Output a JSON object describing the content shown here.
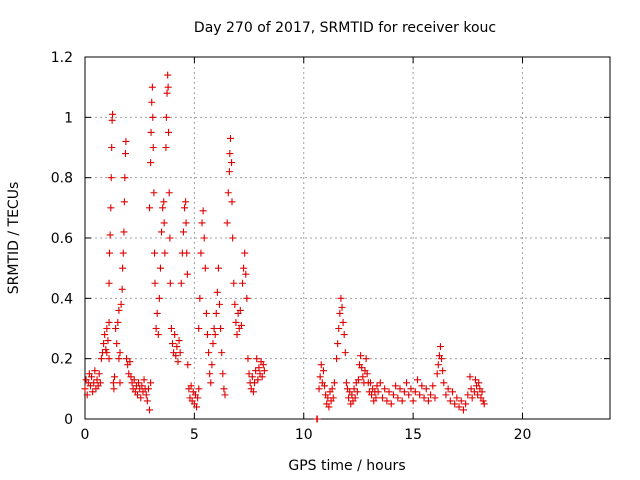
{
  "chart_data": {
    "type": "scatter",
    "title": "Day 270 of 2017, SRMTID for receiver kouc",
    "xlabel": "GPS time / hours",
    "ylabel": "SRMTID / TECUs",
    "xlim": [
      0,
      24
    ],
    "ylim": [
      0,
      1.2
    ],
    "xticks": [
      0,
      5,
      10,
      15,
      20
    ],
    "yticks": [
      0,
      0.2,
      0.4,
      0.6,
      0.8,
      1,
      1.2
    ],
    "xtick_labels": [
      "0",
      "5",
      "10",
      "15",
      "20"
    ],
    "ytick_labels": [
      "0",
      "0.2",
      "0.4",
      "0.6",
      "0.8",
      "1",
      "1.2"
    ],
    "grid": true,
    "marker": "+",
    "color": "#e00000",
    "series": [
      {
        "name": "SRMTID",
        "points": [
          [
            0.0,
            0.1
          ],
          [
            0.05,
            0.13
          ],
          [
            0.1,
            0.08
          ],
          [
            0.15,
            0.12
          ],
          [
            0.2,
            0.15
          ],
          [
            0.25,
            0.11
          ],
          [
            0.3,
            0.14
          ],
          [
            0.35,
            0.09
          ],
          [
            0.4,
            0.12
          ],
          [
            0.45,
            0.16
          ],
          [
            0.5,
            0.1
          ],
          [
            0.55,
            0.13
          ],
          [
            0.6,
            0.11
          ],
          [
            0.65,
            0.15
          ],
          [
            0.7,
            0.12
          ],
          [
            0.75,
            0.2
          ],
          [
            0.8,
            0.22
          ],
          [
            0.85,
            0.25
          ],
          [
            0.9,
            0.28
          ],
          [
            0.95,
            0.23
          ],
          [
            1.0,
            0.3
          ],
          [
            1.05,
            0.26
          ],
          [
            1.1,
            0.32
          ],
          [
            1.0,
            0.22
          ],
          [
            1.1,
            0.2
          ],
          [
            1.1,
            0.45
          ],
          [
            1.12,
            0.55
          ],
          [
            1.15,
            0.61
          ],
          [
            1.18,
            0.7
          ],
          [
            1.2,
            0.8
          ],
          [
            1.22,
            0.9
          ],
          [
            1.24,
            0.99
          ],
          [
            1.26,
            1.01
          ],
          [
            1.3,
            0.12
          ],
          [
            1.32,
            0.1
          ],
          [
            1.35,
            0.14
          ],
          [
            1.4,
            0.3
          ],
          [
            1.45,
            0.25
          ],
          [
            1.5,
            0.32
          ],
          [
            1.55,
            0.36
          ],
          [
            1.55,
            0.2
          ],
          [
            1.6,
            0.22
          ],
          [
            1.6,
            0.12
          ],
          [
            1.65,
            0.38
          ],
          [
            1.7,
            0.43
          ],
          [
            1.72,
            0.5
          ],
          [
            1.75,
            0.55
          ],
          [
            1.78,
            0.62
          ],
          [
            1.8,
            0.72
          ],
          [
            1.82,
            0.8
          ],
          [
            1.85,
            0.88
          ],
          [
            1.87,
            0.92
          ],
          [
            1.9,
            0.2
          ],
          [
            1.95,
            0.18
          ],
          [
            2.0,
            0.15
          ],
          [
            2.05,
            0.19
          ],
          [
            2.1,
            0.14
          ],
          [
            2.15,
            0.12
          ],
          [
            2.2,
            0.1
          ],
          [
            2.25,
            0.13
          ],
          [
            2.3,
            0.09
          ],
          [
            2.35,
            0.11
          ],
          [
            2.4,
            0.08
          ],
          [
            2.45,
            0.12
          ],
          [
            2.5,
            0.1
          ],
          [
            2.55,
            0.07
          ],
          [
            2.6,
            0.11
          ],
          [
            2.65,
            0.09
          ],
          [
            2.7,
            0.13
          ],
          [
            2.75,
            0.1
          ],
          [
            2.8,
            0.08
          ],
          [
            2.85,
            0.06
          ],
          [
            2.9,
            0.1
          ],
          [
            2.95,
            0.03
          ],
          [
            3.0,
            0.12
          ],
          [
            2.95,
            0.7
          ],
          [
            3.0,
            0.85
          ],
          [
            3.02,
            0.95
          ],
          [
            3.05,
            1.05
          ],
          [
            3.08,
            1.1
          ],
          [
            3.1,
            1.0
          ],
          [
            3.12,
            0.9
          ],
          [
            3.15,
            0.75
          ],
          [
            3.18,
            0.55
          ],
          [
            3.2,
            0.45
          ],
          [
            3.25,
            0.3
          ],
          [
            3.3,
            0.35
          ],
          [
            3.35,
            0.28
          ],
          [
            3.4,
            0.4
          ],
          [
            3.45,
            0.5
          ],
          [
            3.5,
            0.62
          ],
          [
            3.55,
            0.7
          ],
          [
            3.6,
            0.72
          ],
          [
            3.62,
            0.65
          ],
          [
            3.65,
            0.55
          ],
          [
            3.7,
            0.9
          ],
          [
            3.72,
            1.0
          ],
          [
            3.75,
            1.08
          ],
          [
            3.78,
            1.14
          ],
          [
            3.8,
            1.1
          ],
          [
            3.82,
            0.95
          ],
          [
            3.85,
            0.75
          ],
          [
            3.88,
            0.6
          ],
          [
            3.9,
            0.45
          ],
          [
            3.95,
            0.3
          ],
          [
            4.0,
            0.25
          ],
          [
            4.05,
            0.22
          ],
          [
            4.1,
            0.28
          ],
          [
            4.15,
            0.21
          ],
          [
            4.2,
            0.24
          ],
          [
            4.25,
            0.19
          ],
          [
            4.3,
            0.26
          ],
          [
            4.35,
            0.22
          ],
          [
            4.4,
            0.45
          ],
          [
            4.45,
            0.55
          ],
          [
            4.5,
            0.62
          ],
          [
            4.55,
            0.7
          ],
          [
            4.6,
            0.72
          ],
          [
            4.62,
            0.65
          ],
          [
            4.65,
            0.55
          ],
          [
            4.68,
            0.48
          ],
          [
            4.7,
            0.18
          ],
          [
            4.75,
            0.1
          ],
          [
            4.8,
            0.07
          ],
          [
            4.85,
            0.11
          ],
          [
            4.9,
            0.06
          ],
          [
            4.95,
            0.09
          ],
          [
            5.0,
            0.05
          ],
          [
            5.05,
            0.08
          ],
          [
            5.1,
            0.04
          ],
          [
            5.15,
            0.07
          ],
          [
            5.2,
            0.1
          ],
          [
            5.2,
            0.3
          ],
          [
            5.25,
            0.4
          ],
          [
            5.3,
            0.55
          ],
          [
            5.35,
            0.65
          ],
          [
            5.4,
            0.69
          ],
          [
            5.45,
            0.6
          ],
          [
            5.5,
            0.5
          ],
          [
            5.55,
            0.35
          ],
          [
            5.6,
            0.28
          ],
          [
            5.65,
            0.22
          ],
          [
            5.7,
            0.15
          ],
          [
            5.75,
            0.12
          ],
          [
            5.8,
            0.18
          ],
          [
            5.85,
            0.25
          ],
          [
            5.9,
            0.3
          ],
          [
            5.95,
            0.28
          ],
          [
            6.0,
            0.35
          ],
          [
            6.05,
            0.42
          ],
          [
            6.1,
            0.5
          ],
          [
            6.15,
            0.38
          ],
          [
            6.2,
            0.3
          ],
          [
            6.25,
            0.22
          ],
          [
            6.3,
            0.15
          ],
          [
            6.35,
            0.1
          ],
          [
            6.4,
            0.08
          ],
          [
            6.5,
            0.65
          ],
          [
            6.55,
            0.75
          ],
          [
            6.6,
            0.82
          ],
          [
            6.62,
            0.88
          ],
          [
            6.65,
            0.93
          ],
          [
            6.7,
            0.85
          ],
          [
            6.72,
            0.72
          ],
          [
            6.75,
            0.6
          ],
          [
            6.8,
            0.45
          ],
          [
            6.85,
            0.38
          ],
          [
            6.9,
            0.32
          ],
          [
            6.95,
            0.28
          ],
          [
            7.0,
            0.35
          ],
          [
            7.05,
            0.3
          ],
          [
            7.1,
            0.36
          ],
          [
            7.15,
            0.31
          ],
          [
            7.2,
            0.45
          ],
          [
            7.25,
            0.5
          ],
          [
            7.3,
            0.55
          ],
          [
            7.35,
            0.48
          ],
          [
            7.4,
            0.4
          ],
          [
            7.45,
            0.2
          ],
          [
            7.5,
            0.15
          ],
          [
            7.55,
            0.12
          ],
          [
            7.6,
            0.1
          ],
          [
            7.65,
            0.14
          ],
          [
            7.7,
            0.09
          ],
          [
            7.75,
            0.12
          ],
          [
            7.8,
            0.16
          ],
          [
            7.85,
            0.2
          ],
          [
            7.9,
            0.13
          ],
          [
            7.95,
            0.17
          ],
          [
            8.0,
            0.15
          ],
          [
            8.05,
            0.19
          ],
          [
            8.1,
            0.14
          ],
          [
            8.15,
            0.18
          ],
          [
            8.2,
            0.16
          ],
          [
            10.6,
            0.0
          ],
          [
            10.62,
            0.0
          ],
          [
            10.7,
            0.1
          ],
          [
            10.75,
            0.14
          ],
          [
            10.8,
            0.18
          ],
          [
            10.85,
            0.12
          ],
          [
            10.9,
            0.16
          ],
          [
            10.95,
            0.11
          ],
          [
            11.0,
            0.08
          ],
          [
            11.05,
            0.05
          ],
          [
            11.1,
            0.07
          ],
          [
            11.15,
            0.04
          ],
          [
            11.2,
            0.09
          ],
          [
            11.25,
            0.06
          ],
          [
            11.3,
            0.1
          ],
          [
            11.35,
            0.07
          ],
          [
            11.4,
            0.12
          ],
          [
            11.5,
            0.2
          ],
          [
            11.55,
            0.25
          ],
          [
            11.6,
            0.3
          ],
          [
            11.65,
            0.35
          ],
          [
            11.7,
            0.4
          ],
          [
            11.75,
            0.37
          ],
          [
            11.8,
            0.32
          ],
          [
            11.85,
            0.28
          ],
          [
            11.9,
            0.22
          ],
          [
            11.95,
            0.12
          ],
          [
            12.0,
            0.1
          ],
          [
            12.05,
            0.07
          ],
          [
            12.1,
            0.09
          ],
          [
            12.15,
            0.05
          ],
          [
            12.2,
            0.08
          ],
          [
            12.25,
            0.06
          ],
          [
            12.3,
            0.1
          ],
          [
            12.35,
            0.07
          ],
          [
            12.4,
            0.12
          ],
          [
            12.45,
            0.09
          ],
          [
            12.5,
            0.13
          ],
          [
            12.55,
            0.18
          ],
          [
            12.6,
            0.21
          ],
          [
            12.65,
            0.17
          ],
          [
            12.7,
            0.14
          ],
          [
            12.75,
            0.12
          ],
          [
            12.8,
            0.16
          ],
          [
            12.85,
            0.2
          ],
          [
            12.9,
            0.15
          ],
          [
            12.95,
            0.12
          ],
          [
            13.0,
            0.09
          ],
          [
            13.05,
            0.12
          ],
          [
            13.1,
            0.08
          ],
          [
            13.15,
            0.1
          ],
          [
            13.2,
            0.06
          ],
          [
            13.25,
            0.09
          ],
          [
            13.3,
            0.07
          ],
          [
            13.35,
            0.11
          ],
          [
            13.4,
            0.09
          ],
          [
            13.5,
            0.12
          ],
          [
            13.6,
            0.07
          ],
          [
            13.7,
            0.1
          ],
          [
            13.8,
            0.06
          ],
          [
            13.9,
            0.09
          ],
          [
            14.0,
            0.05
          ],
          [
            14.1,
            0.08
          ],
          [
            14.2,
            0.11
          ],
          [
            14.3,
            0.07
          ],
          [
            14.4,
            0.1
          ],
          [
            14.5,
            0.06
          ],
          [
            14.6,
            0.09
          ],
          [
            14.7,
            0.12
          ],
          [
            14.8,
            0.08
          ],
          [
            14.9,
            0.1
          ],
          [
            15.0,
            0.06
          ],
          [
            15.1,
            0.09
          ],
          [
            15.2,
            0.13
          ],
          [
            15.3,
            0.08
          ],
          [
            15.4,
            0.11
          ],
          [
            15.5,
            0.07
          ],
          [
            15.6,
            0.1
          ],
          [
            15.7,
            0.06
          ],
          [
            15.8,
            0.08
          ],
          [
            15.9,
            0.11
          ],
          [
            16.0,
            0.07
          ],
          [
            16.1,
            0.15
          ],
          [
            16.15,
            0.18
          ],
          [
            16.2,
            0.21
          ],
          [
            16.25,
            0.24
          ],
          [
            16.3,
            0.2
          ],
          [
            16.35,
            0.16
          ],
          [
            16.4,
            0.12
          ],
          [
            16.5,
            0.08
          ],
          [
            16.6,
            0.1
          ],
          [
            16.7,
            0.06
          ],
          [
            16.8,
            0.09
          ],
          [
            16.9,
            0.05
          ],
          [
            17.0,
            0.07
          ],
          [
            17.1,
            0.04
          ],
          [
            17.2,
            0.06
          ],
          [
            17.3,
            0.03
          ],
          [
            17.4,
            0.05
          ],
          [
            17.5,
            0.08
          ],
          [
            17.6,
            0.14
          ],
          [
            17.65,
            0.1
          ],
          [
            17.7,
            0.07
          ],
          [
            17.8,
            0.09
          ],
          [
            17.85,
            0.13
          ],
          [
            17.9,
            0.11
          ],
          [
            17.95,
            0.08
          ],
          [
            18.0,
            0.12
          ],
          [
            18.05,
            0.1
          ],
          [
            18.1,
            0.07
          ],
          [
            18.15,
            0.09
          ],
          [
            18.2,
            0.06
          ],
          [
            18.25,
            0.05
          ]
        ]
      }
    ]
  }
}
